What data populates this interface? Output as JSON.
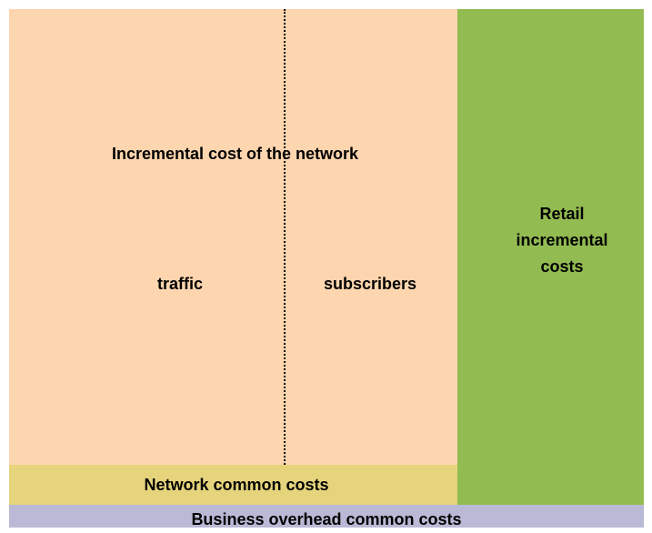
{
  "blocks": {
    "network_incremental": {
      "title": "Incremental cost of the network",
      "left": "traffic",
      "right": "subscribers"
    },
    "network_common": "Network common costs",
    "retail_incremental": "Retail incremental costs",
    "business_overhead": "Business overhead common costs"
  }
}
